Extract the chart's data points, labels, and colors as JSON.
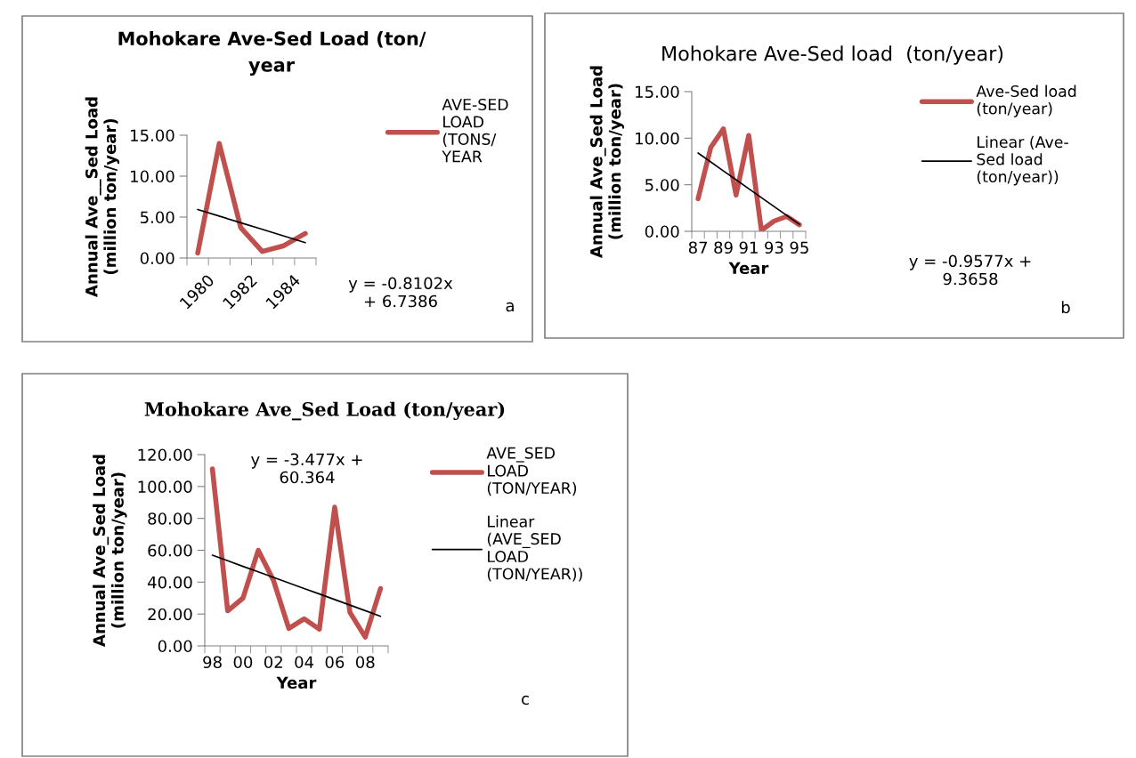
{
  "chart_data": [
    {
      "type": "line",
      "title": "Mohokare Ave-Sed Load (ton/\nyear",
      "ylabel": "Annual Ave__Sed Load\n(million ton/year)",
      "categories": [
        "1980",
        null,
        "1982",
        null,
        "1984",
        null
      ],
      "series": [
        {
          "name": "AVE-SED\nLOAD\n(TONS/\nYEAR",
          "color": "#c0504d",
          "values": [
            0.6,
            14.0,
            3.7,
            0.8,
            1.5,
            3.0
          ]
        },
        {
          "color": "#000000",
          "values": [
            5.93,
            5.12,
            4.31,
            3.5,
            2.69,
            1.88
          ]
        }
      ],
      "ylim": [
        0,
        15
      ],
      "yticks": [
        {
          "value": 0,
          "label": "0.00"
        },
        {
          "value": 5,
          "label": "5.00"
        },
        {
          "value": 10,
          "label": "10.00"
        },
        {
          "value": 15,
          "label": "15.00"
        }
      ],
      "annotations": [
        "y = -0.8102x\n+ 6.7386",
        "a"
      ],
      "legend": "right",
      "grid": false
    },
    {
      "type": "line",
      "title": "Mohokare Ave-Sed load  (ton/year)",
      "xlabel": "Year",
      "ylabel": "Annual Ave_Sed Load\n(million ton/year)",
      "categories": [
        "87",
        null,
        "89",
        null,
        "91",
        null,
        "93",
        null,
        "95"
      ],
      "series": [
        {
          "name": "Ave-Sed load\n(ton/year)",
          "color": "#c0504d",
          "values": [
            3.5,
            9.0,
            11.0,
            3.9,
            10.3,
            0.1,
            1.1,
            1.6,
            0.7
          ]
        },
        {
          "name": "Linear (Ave-\nSed load\n(ton/year))",
          "color": "#000000",
          "values": [
            8.41,
            7.45,
            6.49,
            5.54,
            4.58,
            3.62,
            2.66,
            1.71,
            0.75
          ]
        }
      ],
      "ylim": [
        0,
        15
      ],
      "yticks": [
        {
          "value": 0,
          "label": "0.00"
        },
        {
          "value": 5,
          "label": "5.00"
        },
        {
          "value": 10,
          "label": "10.00"
        },
        {
          "value": 15,
          "label": "15.00"
        }
      ],
      "annotations": [
        "y = -0.9577x +\n9.3658",
        "b"
      ],
      "legend": "right",
      "grid": false
    },
    {
      "type": "line",
      "title": "Mohokare Ave_Sed Load (ton/year)",
      "xlabel": "Year",
      "ylabel": "Annual Ave_Sed Load\n(million ton/year)",
      "categories": [
        "98",
        null,
        "00",
        null,
        "02",
        null,
        "04",
        null,
        "06",
        null,
        "08",
        null
      ],
      "series": [
        {
          "name": "AVE_SED\nLOAD\n(TON/YEAR)",
          "color": "#c0504d",
          "values": [
            111,
            22,
            30,
            60,
            41,
            11,
            17,
            10.5,
            87,
            21,
            5.5,
            36
          ]
        },
        {
          "name": "Linear\n(AVE_SED\nLOAD\n(TON/YEAR))",
          "color": "#000000",
          "values": [
            56.9,
            53.4,
            49.9,
            46.5,
            43.0,
            39.5,
            36.0,
            32.6,
            29.1,
            25.6,
            22.1,
            18.6
          ]
        }
      ],
      "ylim": [
        0,
        120
      ],
      "yticks": [
        {
          "value": 0,
          "label": "0.00"
        },
        {
          "value": 20,
          "label": "20.00"
        },
        {
          "value": 40,
          "label": "40.00"
        },
        {
          "value": 60,
          "label": "60.00"
        },
        {
          "value": 80,
          "label": "80.00"
        },
        {
          "value": 100,
          "label": "100.00"
        },
        {
          "value": 120,
          "label": "120.00"
        }
      ],
      "annotations": [
        "y = -3.477x +\n60.364",
        "c"
      ],
      "legend": "right",
      "grid": false
    }
  ]
}
